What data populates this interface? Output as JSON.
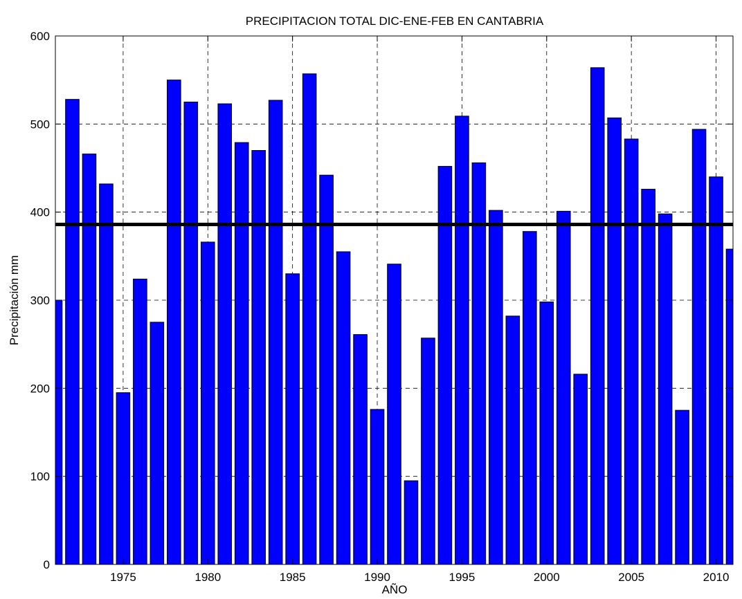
{
  "chart_data": {
    "type": "bar",
    "title": "PRECIPITACION TOTAL DIC-ENE-FEB EN CANTABRIA",
    "x_label": "AÑO",
    "y_label": "Precipitación mm",
    "x": [
      1971,
      1972,
      1973,
      1974,
      1975,
      1976,
      1977,
      1978,
      1979,
      1980,
      1981,
      1982,
      1983,
      1984,
      1985,
      1986,
      1987,
      1988,
      1989,
      1990,
      1991,
      1992,
      1993,
      1994,
      1995,
      1996,
      1997,
      1998,
      1999,
      2000,
      2001,
      2002,
      2003,
      2004,
      2005,
      2006,
      2007,
      2008,
      2009,
      2010,
      2011
    ],
    "values": [
      300,
      528,
      466,
      432,
      195,
      324,
      275,
      550,
      525,
      366,
      523,
      479,
      470,
      527,
      330,
      557,
      442,
      355,
      261,
      176,
      341,
      95,
      257,
      452,
      509,
      456,
      402,
      282,
      378,
      298,
      401,
      216,
      564,
      507,
      483,
      426,
      398,
      175,
      494,
      440,
      358
    ],
    "color": "#0000ff",
    "bar_width": 0.8,
    "reference_line": {
      "value": 386,
      "color": "#000000"
    },
    "xlim": [
      1971,
      2011
    ],
    "xticks": [
      1975,
      1980,
      1985,
      1990,
      1995,
      2000,
      2005,
      2010
    ],
    "ylim": [
      0,
      600
    ],
    "yticks": [
      0,
      100,
      200,
      300,
      400,
      500,
      600
    ],
    "grid": true
  }
}
